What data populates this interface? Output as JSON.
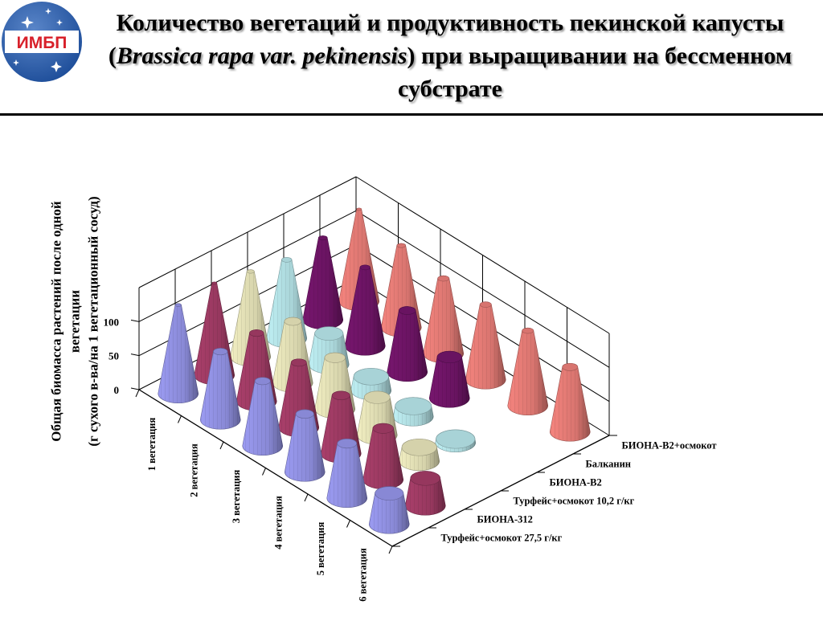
{
  "header": {
    "logo_text": "ИМБП",
    "title_part1": "Количество вегетаций и продуктивность пекинской капусты (",
    "title_species": "Brassica rapa var. pekinensis",
    "title_part2": ") при выращивании на бессменном субстрате"
  },
  "chart_data": {
    "type": "bar3d",
    "ylabel_line1": "Общая биомасса растений после одной",
    "ylabel_line2": "вегетации",
    "ylabel_line3": "(г сухого в-ва/на 1 вегетационный сосуд)",
    "yticks": [
      "0",
      "50",
      "100"
    ],
    "ylim": [
      0,
      150
    ],
    "categories": [
      "1 вегетация",
      "2 вегетация",
      "3 вегетация",
      "4 вегетация",
      "5 вегетация",
      "6 вегетация"
    ],
    "series": [
      {
        "name": "Турфейс+осмокот 27,5 г/кг",
        "shape": "cone",
        "color": "#9b9bf2",
        "values": [
          130,
          100,
          95,
          85,
          80,
          45
        ]
      },
      {
        "name": "БИОНА-312",
        "shape": "cone",
        "color": "#aa3f6b",
        "values": [
          135,
          100,
          95,
          85,
          75,
          40
        ]
      },
      {
        "name": "Турфейс+осмокот 10,2 г/кг",
        "shape": "cone",
        "color": "#f2efc2",
        "values": [
          125,
          90,
          75,
          55,
          20,
          null
        ]
      },
      {
        "name": "БИОНА-В2",
        "shape": "cone",
        "color": "#bff0f4",
        "values": [
          115,
          45,
          20,
          15,
          5,
          null
        ]
      },
      {
        "name": "Балканин",
        "shape": "cone",
        "color": "#77166e",
        "values": [
          120,
          115,
          90,
          60,
          null,
          null
        ]
      },
      {
        "name": "БИОНА-В2+осмокот",
        "shape": "cone",
        "color": "#f5847e",
        "values": [
          135,
          120,
          110,
          110,
          110,
          95
        ]
      }
    ]
  }
}
